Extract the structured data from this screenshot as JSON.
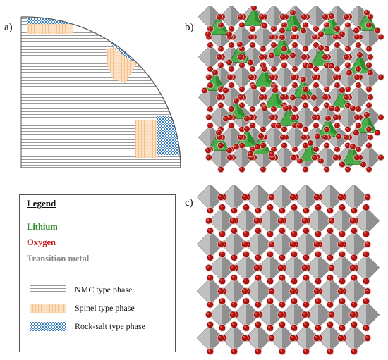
{
  "panels": {
    "a": "a)",
    "b": "b)",
    "c": "c)"
  },
  "legend": {
    "title": "Legend",
    "elements": [
      {
        "label": "Lithium",
        "color": "#2e8b2e"
      },
      {
        "label": "Oxygen",
        "color": "#c8201a"
      },
      {
        "label": "Transition metal",
        "color": "#8a8a8a"
      }
    ],
    "phases": [
      {
        "label": "NMC type phase",
        "pattern": "horizontal-lines"
      },
      {
        "label": "Spinel type phase",
        "pattern": "orange-grid"
      },
      {
        "label": "Rock-salt type phase",
        "pattern": "blue-checker"
      }
    ]
  },
  "colors": {
    "lithium_tetrahedra": "#3fae3f",
    "oxygen_atoms": "#c8201a",
    "octahedra": "#9a9a9a",
    "nmc_lines": "#8f8f8f",
    "spinel": "#f0a860",
    "rocksalt": "#3b7fc4"
  }
}
